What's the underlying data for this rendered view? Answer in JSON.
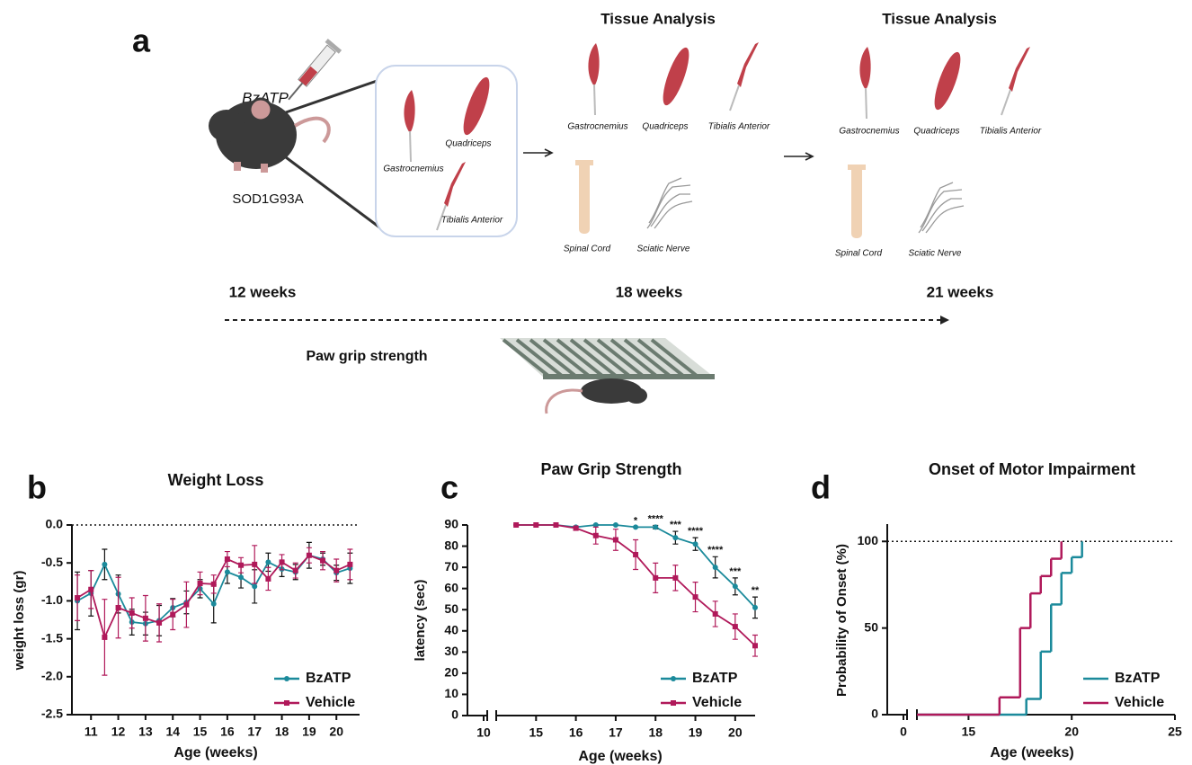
{
  "panel_a": {
    "letter": "a",
    "drug": "BzATP",
    "mouse": "SOD1G93A",
    "injected_muscles": [
      "Gastrocnemius",
      "Quadriceps",
      "Tibialis Anterior"
    ],
    "analyses": [
      {
        "title": "Tissue Analysis",
        "muscles": [
          "Gastrocnemius",
          "Quadriceps",
          "Tibialis Anterior"
        ],
        "tissues": [
          "Spinal Cord",
          "Sciatic Nerve"
        ]
      },
      {
        "title": "Tissue Analysis",
        "muscles": [
          "Gastrocnemius",
          "Quadriceps",
          "Tibialis Anterior"
        ],
        "tissues": [
          "Spinal Cord",
          "Sciatic Nerve"
        ]
      }
    ],
    "timeline": [
      "12 weeks",
      "18 weeks",
      "21 weeks"
    ],
    "test": "Paw grip strength"
  },
  "chart_data": [
    {
      "type": "line",
      "panel": "b",
      "title": "Weight Loss",
      "x_label": "Age (weeks)",
      "y_label": "weight loss (gr)",
      "x": [
        10.5,
        11,
        11.5,
        12,
        12.5,
        13,
        13.5,
        14,
        14.5,
        15,
        15.5,
        16,
        16.5,
        17,
        17.5,
        18,
        18.5,
        19,
        19.5,
        20,
        20.5
      ],
      "series": [
        {
          "name": "BzATP",
          "color": "#1b8a9b",
          "marker": "circle",
          "values": [
            -1.0,
            -0.9,
            -0.52,
            -0.91,
            -1.28,
            -1.3,
            -1.26,
            -1.09,
            -1.02,
            -0.84,
            -1.04,
            -0.62,
            -0.69,
            -0.81,
            -0.49,
            -0.58,
            -0.62,
            -0.4,
            -0.45,
            -0.63,
            -0.57
          ],
          "errors": [
            0.38,
            0.3,
            0.2,
            0.25,
            0.17,
            0.15,
            0.2,
            0.12,
            0.15,
            0.12,
            0.25,
            0.15,
            0.14,
            0.22,
            0.12,
            0.1,
            0.1,
            0.17,
            0.08,
            0.1,
            0.2
          ]
        },
        {
          "name": "Vehicle",
          "color": "#b0195a",
          "marker": "square",
          "values": [
            -0.96,
            -0.85,
            -1.48,
            -1.09,
            -1.16,
            -1.23,
            -1.29,
            -1.18,
            -1.05,
            -0.77,
            -0.78,
            -0.45,
            -0.53,
            -0.52,
            -0.71,
            -0.49,
            -0.6,
            -0.4,
            -0.47,
            -0.6,
            -0.52
          ],
          "errors": [
            0.3,
            0.25,
            0.5,
            0.4,
            0.2,
            0.3,
            0.25,
            0.2,
            0.3,
            0.15,
            0.12,
            0.1,
            0.1,
            0.25,
            0.15,
            0.1,
            0.1,
            0.1,
            0.12,
            0.15,
            0.2
          ]
        }
      ],
      "xlim": [
        10.3,
        20.85
      ],
      "xticks": [
        11,
        12,
        13,
        14,
        15,
        16,
        17,
        18,
        19,
        20
      ],
      "ylim": [
        -2.5,
        0
      ],
      "yticks": [
        -2.5,
        {
          "value": -2,
          "label": "-2.0"
        },
        -1.5,
        {
          "value": -1,
          "label": "-1.0"
        },
        -0.5,
        {
          "value": 0,
          "label": "0.0"
        }
      ],
      "reference_line": 0,
      "legend": "lower right"
    },
    {
      "type": "line",
      "panel": "c",
      "title": "Paw Grip Strength",
      "x_label": "Age (weeks)",
      "y_label": "latency (sec)",
      "x": [
        14.5,
        15,
        15.5,
        16,
        16.5,
        17,
        17.5,
        18,
        18.5,
        19,
        19.5,
        20,
        20.5
      ],
      "series": [
        {
          "name": "BzATP",
          "color": "#1b8a9b",
          "marker": "circle",
          "values": [
            90,
            90,
            90,
            89,
            90,
            90,
            89,
            89,
            84,
            81,
            70,
            61,
            51
          ],
          "errors": [
            0,
            0,
            0,
            0,
            0,
            0,
            0,
            0.8,
            3,
            3,
            5,
            4,
            5
          ]
        },
        {
          "name": "Vehicle",
          "color": "#b0195a",
          "marker": "square",
          "values": [
            90,
            90,
            90,
            88.5,
            85,
            83,
            76,
            65,
            65,
            56,
            48,
            42,
            33
          ],
          "errors": [
            0,
            0,
            0,
            1,
            4,
            5,
            7,
            7,
            6,
            7,
            6,
            6,
            5
          ]
        }
      ],
      "significance": [
        null,
        null,
        null,
        null,
        null,
        null,
        "*",
        "****",
        "***",
        "****",
        "****",
        "***",
        "**"
      ],
      "xlim": [
        14,
        20.5
      ],
      "xticks": [
        10,
        15,
        16,
        17,
        18,
        19,
        20
      ],
      "axis_break": true,
      "ylim": [
        0,
        90
      ],
      "yticks": [
        0,
        10,
        20,
        30,
        40,
        50,
        60,
        70,
        80,
        90
      ],
      "legend": "lower right"
    },
    {
      "type": "step",
      "panel": "d",
      "title": "Onset of Motor Impairment",
      "x_label": "Age (weeks)",
      "y_label": "Probability of Onset (%)",
      "series": [
        {
          "name": "BzATP",
          "color": "#1b8a9b",
          "x": [
            17.8,
            18.5,
            19,
            19.5,
            20,
            20.5
          ],
          "values": [
            9.1,
            36.4,
            63.6,
            81.8,
            90.9,
            100
          ]
        },
        {
          "name": "Vehicle",
          "color": "#b0195a",
          "x": [
            16.5,
            17.5,
            18,
            18.5,
            19,
            19.5
          ],
          "values": [
            10,
            50,
            70,
            80,
            90,
            100
          ]
        }
      ],
      "xlim": [
        12.5,
        25
      ],
      "xticks": [
        0,
        15,
        20,
        25
      ],
      "axis_break": true,
      "ylim": [
        0,
        110
      ],
      "yticks": [
        0,
        50,
        100
      ],
      "reference_line": 100,
      "legend": "lower right"
    }
  ]
}
